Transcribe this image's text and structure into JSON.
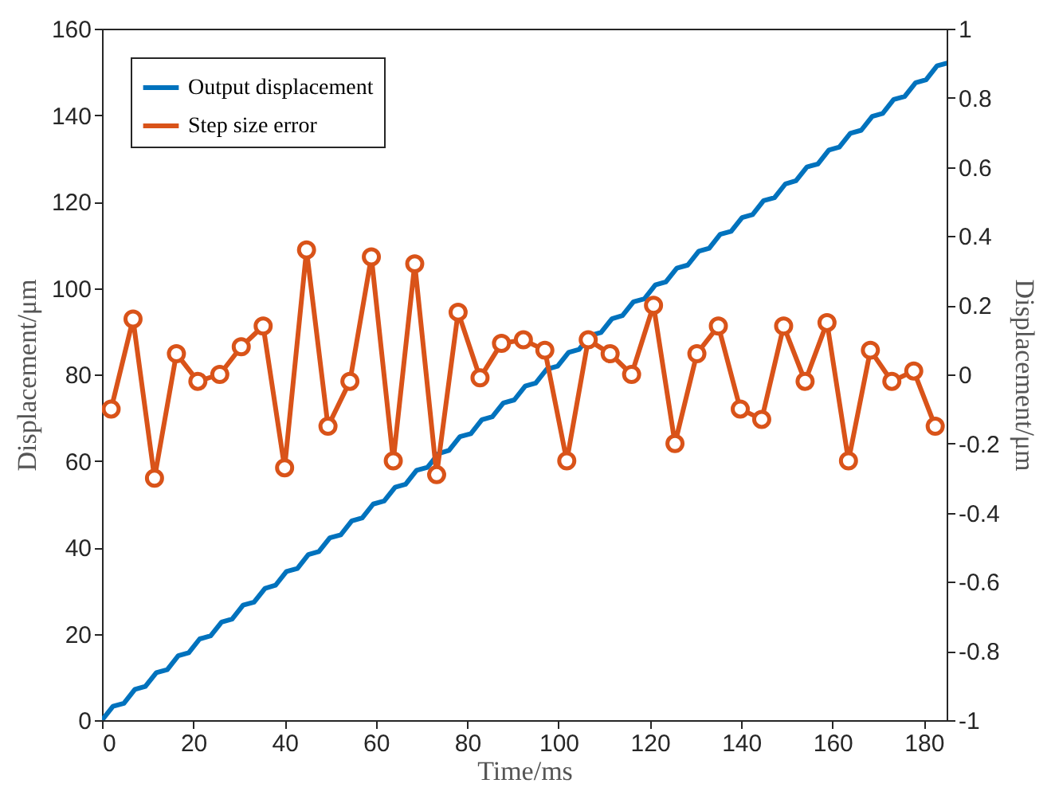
{
  "chart_data": {
    "type": "line",
    "xlabel": "Time/ms",
    "ylabel": "Displacement/μm",
    "y2label": "Displacement/μm",
    "xlim": [
      0,
      185
    ],
    "xticks": [
      0,
      20,
      40,
      60,
      80,
      100,
      120,
      140,
      160,
      180
    ],
    "ylim": [
      0,
      160
    ],
    "yticks": [
      0,
      20,
      40,
      60,
      80,
      100,
      120,
      140,
      160
    ],
    "y2lim": [
      -1,
      1
    ],
    "y2ticks": [
      -1,
      -0.8,
      -0.6,
      -0.4,
      -0.2,
      0,
      0.2,
      0.4,
      0.6,
      0.8,
      1
    ],
    "legend": "top left",
    "grid": false,
    "line_style": "solid",
    "series": [
      {
        "name": "Output displacement",
        "color": "#0072bd",
        "marker": "none",
        "x": [
          0,
          2.4,
          4.8,
          7.2,
          9.5,
          11.9,
          14.3,
          16.7,
          19,
          21.4,
          23.8,
          26.2,
          28.5,
          30.9,
          33.3,
          35.7,
          38,
          40.4,
          42.8,
          45.2,
          47.5,
          49.9,
          52.3,
          54.7,
          57,
          59.4,
          61.8,
          64.2,
          66.5,
          68.9,
          71.3,
          73.7,
          76,
          78.4,
          80.8,
          83.2,
          85.5,
          87.9,
          90.3,
          92.7,
          95,
          97.4,
          99.8,
          102.2,
          104.5,
          106.9,
          109.3,
          111.7,
          114,
          116.4,
          118.8,
          121.2,
          123.5,
          125.9,
          128.3,
          130.7,
          133,
          135.4,
          137.8,
          140.2,
          142.5,
          144.9,
          147.3,
          149.7,
          152,
          154.4,
          156.8,
          159.2,
          161.5,
          163.9,
          166.3,
          168.7,
          171,
          173.4,
          175.8,
          178.2,
          180.5,
          182.9,
          185
        ],
        "values": [
          0,
          3.2,
          3.9,
          7.1,
          7.8,
          11,
          11.7,
          14.9,
          15.6,
          18.8,
          19.5,
          22.7,
          23.4,
          26.6,
          27.3,
          30.5,
          31.2,
          34.4,
          35.1,
          38.3,
          39,
          42.2,
          42.9,
          46.1,
          46.8,
          50,
          50.7,
          53.9,
          54.6,
          57.8,
          58.5,
          61.7,
          62.4,
          65.6,
          66.3,
          69.5,
          70.2,
          73.4,
          74.1,
          77.3,
          78,
          81.2,
          81.9,
          85.1,
          85.8,
          89,
          89.7,
          92.9,
          93.6,
          96.8,
          97.5,
          100.7,
          101.4,
          104.6,
          105.3,
          108.5,
          109.2,
          112.4,
          113.1,
          116.3,
          117,
          120.2,
          120.9,
          124.1,
          124.8,
          128,
          128.7,
          131.9,
          132.6,
          135.8,
          136.5,
          139.7,
          140.4,
          143.6,
          144.3,
          147.5,
          148.2,
          151.4,
          152
        ]
      },
      {
        "name": "Step size error",
        "color": "#d95319",
        "marker": "circle",
        "axis": "y2",
        "x": [
          2,
          6.8,
          11.5,
          16.3,
          21,
          25.8,
          30.5,
          35.3,
          40,
          44.8,
          49.5,
          54.3,
          59,
          63.8,
          68.5,
          73.3,
          78,
          82.8,
          87.5,
          92.3,
          97,
          101.8,
          106.5,
          111.3,
          116,
          120.8,
          125.5,
          130.3,
          135,
          139.8,
          144.5,
          149.3,
          154,
          158.8,
          163.5,
          168.3,
          173,
          177.8,
          182.5
        ],
        "values": [
          -0.1,
          0.16,
          -0.3,
          0.06,
          -0.02,
          0,
          0.08,
          0.14,
          -0.27,
          0.36,
          -0.15,
          -0.02,
          0.34,
          -0.25,
          0.32,
          -0.29,
          0.18,
          -0.01,
          0.09,
          0.1,
          0.07,
          -0.25,
          0.1,
          0.06,
          0,
          0.2,
          -0.2,
          0.06,
          0.14,
          -0.1,
          -0.13,
          0.14,
          -0.02,
          0.15,
          -0.25,
          0.07,
          -0.02,
          0.01,
          -0.15
        ]
      }
    ]
  }
}
